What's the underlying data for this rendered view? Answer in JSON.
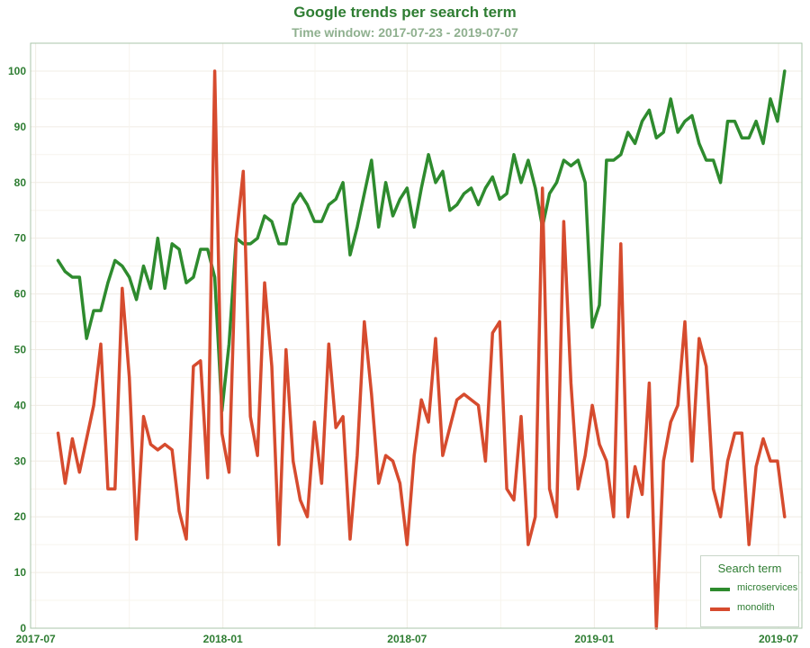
{
  "chart_data": {
    "type": "line",
    "title": "Google trends per search term",
    "subtitle": "Time window: 2017-07-23 - 2019-07-07",
    "xlabel": "",
    "ylabel": "",
    "x_start": "2017-07-23",
    "x_end": "2019-07-07",
    "x_interval_days": 7,
    "xlim": [
      "2017-06-26",
      "2019-07-24"
    ],
    "ylim": [
      0,
      105
    ],
    "x_ticks": [
      "2017-07",
      "2018-01",
      "2018-07",
      "2019-01",
      "2019-07"
    ],
    "y_ticks": [
      0,
      10,
      20,
      30,
      40,
      50,
      60,
      70,
      80,
      90,
      100
    ],
    "grid": true,
    "legend": {
      "title": "Search term",
      "position": "bottom-right"
    },
    "series": [
      {
        "name": "microservices",
        "color": "#2e8b2e",
        "values": [
          66,
          64,
          63,
          63,
          52,
          57,
          57,
          62,
          66,
          65,
          63,
          59,
          65,
          61,
          70,
          61,
          69,
          68,
          62,
          63,
          68,
          68,
          63,
          39,
          51,
          70,
          69,
          69,
          70,
          74,
          73,
          69,
          69,
          76,
          78,
          76,
          73,
          73,
          76,
          77,
          80,
          67,
          72,
          78,
          84,
          72,
          80,
          74,
          77,
          79,
          72,
          79,
          85,
          80,
          82,
          75,
          76,
          78,
          79,
          76,
          79,
          81,
          77,
          78,
          85,
          80,
          84,
          79,
          72,
          78,
          80,
          84,
          83,
          84,
          80,
          54,
          58,
          84,
          84,
          85,
          89,
          87,
          91,
          93,
          88,
          89,
          95,
          89,
          91,
          92,
          87,
          84,
          84,
          80,
          91,
          91,
          88,
          88,
          91,
          87,
          95,
          91,
          100
        ]
      },
      {
        "name": "monolith",
        "color": "#d64b2e",
        "values": [
          35,
          26,
          34,
          28,
          34,
          40,
          51,
          25,
          25,
          61,
          45,
          16,
          38,
          33,
          32,
          33,
          32,
          21,
          16,
          47,
          48,
          27,
          100,
          35,
          28,
          70,
          82,
          38,
          31,
          62,
          47,
          15,
          50,
          30,
          23,
          20,
          37,
          26,
          51,
          36,
          38,
          16,
          31,
          55,
          42,
          26,
          31,
          30,
          26,
          15,
          31,
          41,
          37,
          52,
          31,
          36,
          41,
          42,
          41,
          40,
          30,
          53,
          55,
          25,
          23,
          38,
          15,
          20,
          79,
          25,
          20,
          73,
          44,
          25,
          31,
          40,
          33,
          30,
          20,
          69,
          20,
          29,
          24,
          44,
          0,
          30,
          37,
          40,
          55,
          30,
          52,
          47,
          25,
          20,
          30,
          35,
          35,
          15,
          29,
          34,
          30,
          30,
          20
        ]
      }
    ]
  }
}
